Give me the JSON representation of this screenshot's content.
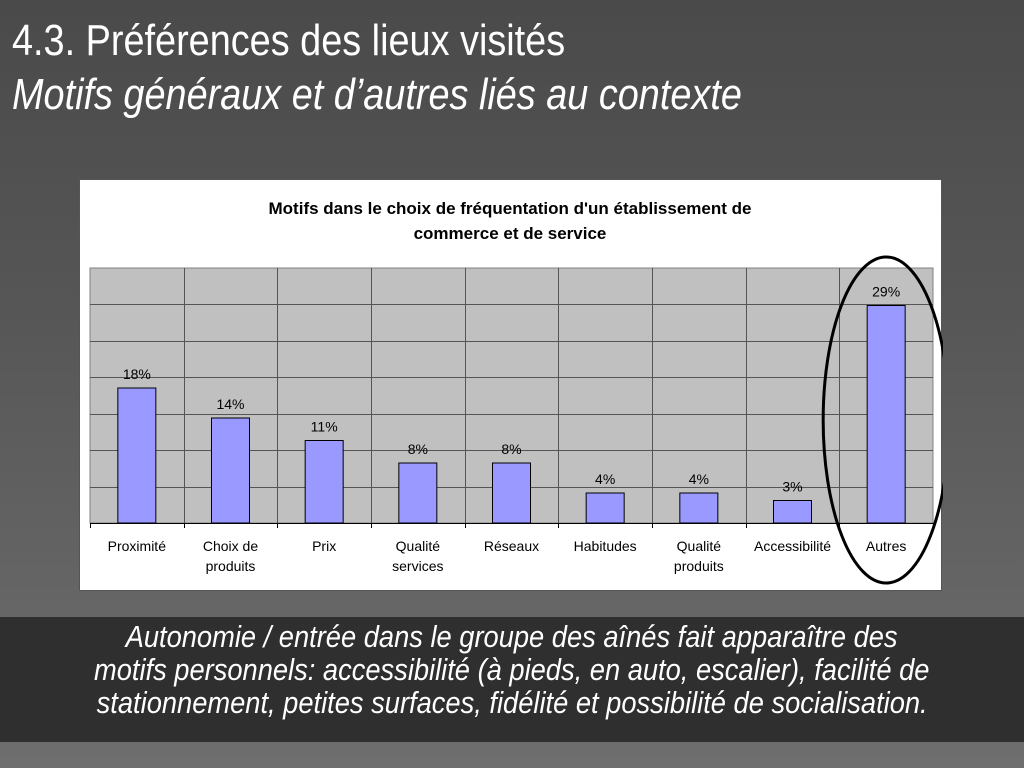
{
  "slide": {
    "title_line1": "4.3. Préférences des lieux visités",
    "title_line2": "Motifs généraux et d’autres liés au contexte",
    "caption_lines": [
      "Autonomie / entrée dans le groupe des aînés fait apparaître des",
      "motifs personnels: accessibilité (à pieds, en auto, escalier), facilité de",
      "stationnement, petites surfaces, fidélité et possibilité de socialisation."
    ]
  },
  "chart_data": {
    "type": "bar",
    "title_lines": [
      "Motifs dans le choix de fréquentation d'un établissement de",
      "commerce et de service"
    ],
    "categories": [
      [
        "Proximité"
      ],
      [
        "Choix de",
        "produits"
      ],
      [
        "Prix"
      ],
      [
        "Qualité",
        "services"
      ],
      [
        "Réseaux"
      ],
      [
        "Habitudes"
      ],
      [
        "Qualité",
        "produits"
      ],
      [
        "Accessibilité"
      ],
      [
        "Autres"
      ]
    ],
    "values": [
      18,
      14,
      11,
      8,
      8,
      4,
      4,
      3,
      29
    ],
    "value_labels": [
      "18%",
      "14%",
      "11%",
      "8%",
      "8%",
      "4%",
      "4%",
      "3%",
      "29%"
    ],
    "ylim": [
      0,
      34
    ],
    "grid": true,
    "highlighted_category": "Autres",
    "colors": {
      "bar": "#9999ff",
      "plot_background": "#c0c0c0",
      "highlight": "#000000"
    }
  }
}
